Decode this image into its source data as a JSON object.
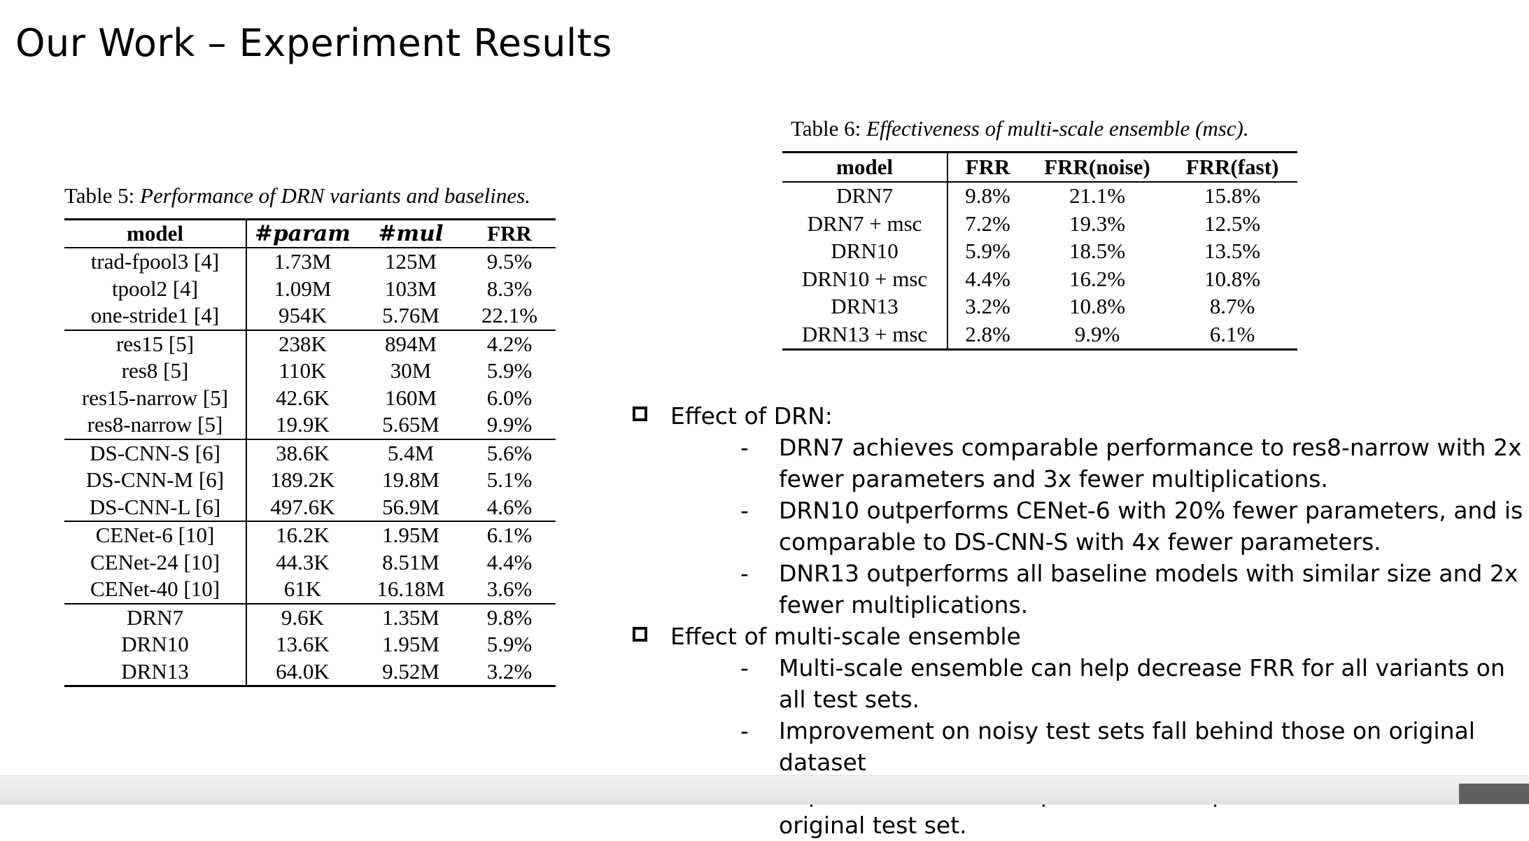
{
  "slide": {
    "title": "Our Work – Experiment Results"
  },
  "table5": {
    "caption_prefix": "Table 5:",
    "caption_text": "Performance of DRN variants and baselines.",
    "headers": [
      "model",
      "#param",
      "#mul",
      "FRR"
    ],
    "groups": [
      [
        [
          "trad-fpool3 [4]",
          "1.73M",
          "125M",
          "9.5%"
        ],
        [
          "tpool2 [4]",
          "1.09M",
          "103M",
          "8.3%"
        ],
        [
          "one-stride1 [4]",
          "954K",
          "5.76M",
          "22.1%"
        ]
      ],
      [
        [
          "res15 [5]",
          "238K",
          "894M",
          "4.2%"
        ],
        [
          "res8 [5]",
          "110K",
          "30M",
          "5.9%"
        ],
        [
          "res15-narrow [5]",
          "42.6K",
          "160M",
          "6.0%"
        ],
        [
          "res8-narrow [5]",
          "19.9K",
          "5.65M",
          "9.9%"
        ]
      ],
      [
        [
          "DS-CNN-S [6]",
          "38.6K",
          "5.4M",
          "5.6%"
        ],
        [
          "DS-CNN-M [6]",
          "189.2K",
          "19.8M",
          "5.1%"
        ],
        [
          "DS-CNN-L [6]",
          "497.6K",
          "56.9M",
          "4.6%"
        ]
      ],
      [
        [
          "CENet-6 [10]",
          "16.2K",
          "1.95M",
          "6.1%"
        ],
        [
          "CENet-24 [10]",
          "44.3K",
          "8.51M",
          "4.4%"
        ],
        [
          "CENet-40 [10]",
          "61K",
          "16.18M",
          "3.6%"
        ]
      ],
      [
        [
          "DRN7",
          "9.6K",
          "1.35M",
          "9.8%"
        ],
        [
          "DRN10",
          "13.6K",
          "1.95M",
          "5.9%"
        ],
        [
          "DRN13",
          "64.0K",
          "9.52M",
          "3.2%"
        ]
      ]
    ]
  },
  "table6": {
    "caption_prefix": "Table 6:",
    "caption_text": "Effectiveness of multi-scale ensemble (msc).",
    "headers": [
      "model",
      "FRR",
      "FRR(noise)",
      "FRR(fast)"
    ],
    "rows": [
      [
        "DRN7",
        "9.8%",
        "21.1%",
        "15.8%"
      ],
      [
        "DRN7 + msc",
        "7.2%",
        "19.3%",
        "12.5%"
      ],
      [
        "DRN10",
        "5.9%",
        "18.5%",
        "13.5%"
      ],
      [
        "DRN10 + msc",
        "4.4%",
        "16.2%",
        "10.8%"
      ],
      [
        "DRN13",
        "3.2%",
        "10.8%",
        "8.7%"
      ],
      [
        "DRN13 + msc",
        "2.8%",
        "9.9%",
        "6.1%"
      ]
    ]
  },
  "bullets": [
    {
      "text": "Effect of DRN:",
      "subs": [
        "DRN7 achieves comparable performance to res8-narrow with 2x fewer parameters and 3x fewer multiplications.",
        "DRN10 outperforms CENet-6 with 20% fewer parameters, and is comparable to DS-CNN-S with 4x fewer parameters.",
        "DNR13 outperforms all baseline models with similar size and 2x fewer multiplications."
      ]
    },
    {
      "text": "Effect of multi-scale ensemble",
      "subs": [
        "Multi-scale ensemble can help decrease FRR for all variants on all test sets.",
        "Improvement on noisy test sets fall behind those on original dataset",
        "Improvement on fast speech are comparable to those seen on original test set."
      ]
    }
  ]
}
